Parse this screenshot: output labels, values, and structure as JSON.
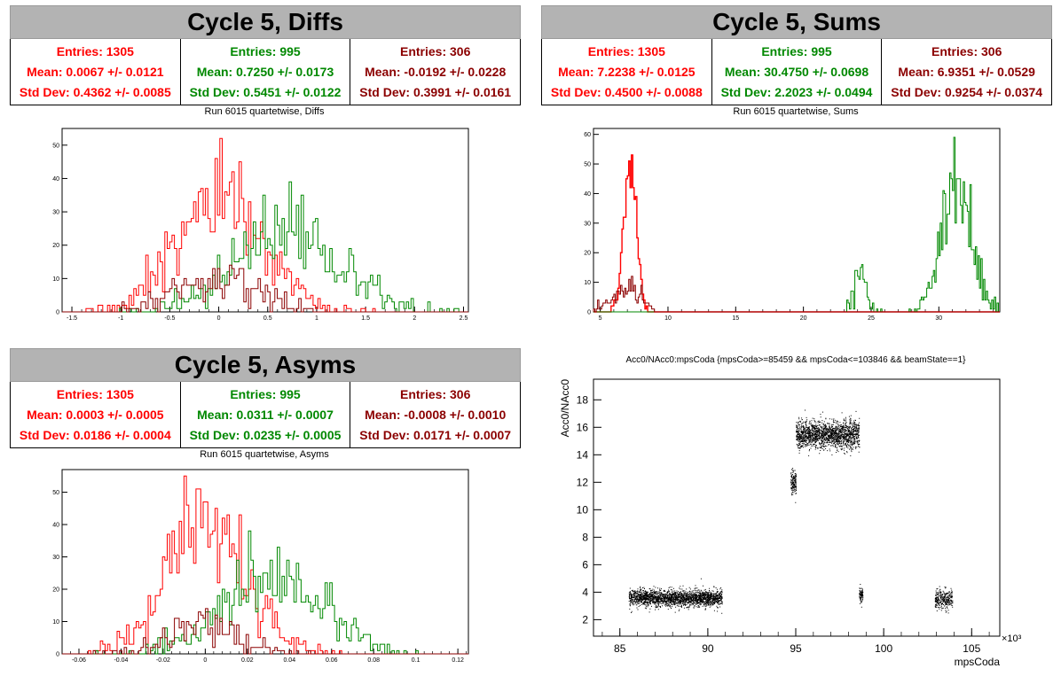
{
  "colors": {
    "all": "#ff0000",
    "green": "#008800",
    "dark": "#8b0000",
    "title_bg": "#b3b3b3"
  },
  "panels": [
    {
      "title": "Cycle 5, Diffs",
      "stats": [
        {
          "entries": "Entries: 1305",
          "mean": "Mean: 0.0067 +/- 0.0121",
          "std": "Std Dev: 0.4362 +/- 0.0085"
        },
        {
          "entries": "Entries: 995",
          "mean": "Mean: 0.7250 +/- 0.0173",
          "std": "Std Dev: 0.5451 +/- 0.0122"
        },
        {
          "entries": "Entries: 306",
          "mean": "Mean: -0.0192 +/- 0.0228",
          "std": "Std Dev: 0.3991 +/- 0.0161"
        }
      ],
      "run_label": "Run 6015 quartetwise, Diffs"
    },
    {
      "title": "Cycle 5, Sums",
      "stats": [
        {
          "entries": "Entries: 1305",
          "mean": "Mean: 7.2238 +/- 0.0125",
          "std": "Std Dev: 0.4500 +/- 0.0088"
        },
        {
          "entries": "Entries: 995",
          "mean": "Mean: 30.4750 +/- 0.0698",
          "std": "Std Dev: 2.2023 +/- 0.0494"
        },
        {
          "entries": "Entries: 306",
          "mean": "Mean: 6.9351 +/- 0.0529",
          "std": "Std Dev: 0.9254 +/- 0.0374"
        }
      ],
      "run_label": "Run 6015 quartetwise, Sums"
    },
    {
      "title": "Cycle 5, Asyms",
      "stats": [
        {
          "entries": "Entries: 1305",
          "mean": "Mean: 0.0003 +/- 0.0005",
          "std": "Std Dev: 0.0186 +/- 0.0004"
        },
        {
          "entries": "Entries: 995",
          "mean": "Mean: 0.0311 +/- 0.0007",
          "std": "Std Dev: 0.0235 +/- 0.0005"
        },
        {
          "entries": "Entries: 306",
          "mean": "Mean: -0.0008 +/- 0.0010",
          "std": "Std Dev: 0.0171 +/- 0.0007"
        }
      ],
      "run_label": "Run 6015 quartetwise, Asyms"
    }
  ],
  "scatter_title": "Acc0/NAcc0:mpsCoda {mpsCoda>=85459 && mpsCoda<=103846 && beamState==1}",
  "chart_data": [
    {
      "type": "histogram",
      "xlim": [
        -1.6,
        2.55
      ],
      "ylim": [
        0,
        55
      ],
      "xticks": [
        "-1.5",
        "-1",
        "-0.5",
        "0",
        "0.5",
        "1",
        "1.5",
        "2",
        "2.5"
      ],
      "xtick_values": [
        -1.5,
        -1,
        -0.5,
        0,
        0.5,
        1,
        1.5,
        2,
        2.5
      ],
      "yticks": [
        "0",
        "10",
        "20",
        "30",
        "40",
        "50"
      ],
      "ytick_values": [
        0,
        10,
        20,
        30,
        40,
        50
      ],
      "series": [
        {
          "color": "all",
          "mean": 0.0067,
          "std": 0.4362,
          "entries": 1305,
          "peak": 52
        },
        {
          "color": "green",
          "mean": 0.725,
          "std": 0.5451,
          "entries": 995,
          "peak": 39
        },
        {
          "color": "dark",
          "mean": -0.0192,
          "std": 0.3991,
          "entries": 306,
          "peak": 14
        }
      ]
    },
    {
      "type": "histogram",
      "xlim": [
        4.5,
        34.5
      ],
      "ylim": [
        0,
        62
      ],
      "xticks": [
        "5",
        "10",
        "15",
        "20",
        "25",
        "30"
      ],
      "xtick_values": [
        5,
        10,
        15,
        20,
        25,
        30
      ],
      "yticks": [
        "0",
        "10",
        "20",
        "30",
        "40",
        "50",
        "60"
      ],
      "ytick_values": [
        0,
        10,
        20,
        30,
        40,
        50,
        60
      ],
      "series": [
        {
          "color": "all",
          "mean": 7.2238,
          "std": 0.45,
          "entries": 1305,
          "peak": 53
        },
        {
          "color": "green",
          "mean": 30.475,
          "std": 2.2023,
          "entries": 995,
          "peak": 59
        },
        {
          "color": "dark",
          "mean": 6.9351,
          "std": 0.9254,
          "entries": 306,
          "peak": 12
        }
      ]
    },
    {
      "type": "histogram",
      "xlim": [
        -0.068,
        0.125
      ],
      "ylim": [
        0,
        57
      ],
      "xticks": [
        "-0.06",
        "-0.04",
        "-0.02",
        "0",
        "0.02",
        "0.04",
        "0.06",
        "0.08",
        "0.1",
        "0.12"
      ],
      "xtick_values": [
        -0.06,
        -0.04,
        -0.02,
        0,
        0.02,
        0.04,
        0.06,
        0.08,
        0.1,
        0.12
      ],
      "yticks": [
        "0",
        "10",
        "20",
        "30",
        "40",
        "50"
      ],
      "ytick_values": [
        0,
        10,
        20,
        30,
        40,
        50
      ],
      "series": [
        {
          "color": "all",
          "mean": 0.0003,
          "std": 0.0186,
          "entries": 1305,
          "peak": 55
        },
        {
          "color": "green",
          "mean": 0.0311,
          "std": 0.0235,
          "entries": 995,
          "peak": 38
        },
        {
          "color": "dark",
          "mean": -0.0008,
          "std": 0.0171,
          "entries": 306,
          "peak": 14
        }
      ]
    },
    {
      "type": "scatter",
      "xlabel": "mpsCoda",
      "ylabel": "Acc0/NAcc0",
      "x_exponent": "×10³",
      "xlim": [
        83.5,
        106.6
      ],
      "ylim": [
        0.8,
        19.5
      ],
      "xticks": [
        "85",
        "90",
        "95",
        "100",
        "105"
      ],
      "xtick_values": [
        85,
        90,
        95,
        100,
        105
      ],
      "yticks": [
        "2",
        "4",
        "6",
        "8",
        "10",
        "12",
        "14",
        "16",
        "18"
      ],
      "ytick_values": [
        2,
        4,
        6,
        8,
        10,
        12,
        14,
        16,
        18
      ],
      "clusters": [
        {
          "x": [
            85.5,
            90.8
          ],
          "y_center": 3.6,
          "y_spread": 0.6,
          "n": 2200
        },
        {
          "x": [
            94.7,
            95.0
          ],
          "y_center": 12.0,
          "y_spread": 0.9,
          "n": 140
        },
        {
          "x": [
            95.0,
            98.6
          ],
          "y_center": 15.5,
          "y_spread": 1.0,
          "n": 1800
        },
        {
          "x": [
            98.6,
            98.8
          ],
          "y_center": 3.8,
          "y_spread": 0.6,
          "n": 90
        },
        {
          "x": [
            102.9,
            103.9
          ],
          "y_center": 3.5,
          "y_spread": 0.7,
          "n": 300
        }
      ]
    }
  ]
}
